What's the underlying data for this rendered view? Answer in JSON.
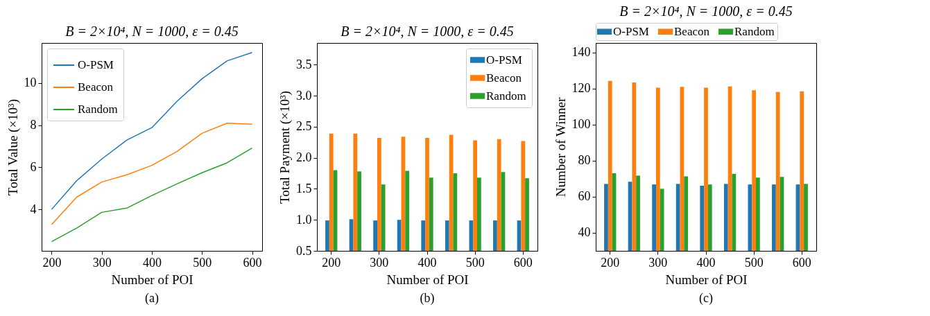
{
  "chart_data": [
    {
      "type": "line",
      "title": "B = 2×10⁴, N = 1000, ε = 0.45",
      "xlabel": "Number of POI",
      "ylabel": "Total Value (×10³)",
      "annotations": [
        "(a)"
      ],
      "legend": "top left",
      "x": [
        200,
        250,
        300,
        350,
        400,
        450,
        500,
        550,
        600
      ],
      "xlim": [
        180,
        620
      ],
      "xticks": [
        200,
        300,
        400,
        500,
        600
      ],
      "ylim": [
        2.03,
        11.9
      ],
      "yticks": [
        4,
        6,
        8,
        10
      ],
      "series": [
        {
          "name": "O-PSM",
          "color": "#1f77b4",
          "values": [
            4.0,
            5.36,
            6.39,
            7.29,
            7.88,
            9.13,
            10.2,
            11.05,
            11.45
          ]
        },
        {
          "name": "Beacon",
          "color": "#ff7f0e",
          "values": [
            3.28,
            4.58,
            5.3,
            5.64,
            6.09,
            6.75,
            7.61,
            8.09,
            8.04
          ]
        },
        {
          "name": "Random",
          "color": "#2ca02c",
          "values": [
            2.47,
            3.11,
            3.86,
            4.06,
            4.66,
            5.21,
            5.74,
            6.21,
            6.91
          ]
        }
      ]
    },
    {
      "type": "bar",
      "title": "B = 2×10⁴, N = 1000, ε = 0.45",
      "xlabel": "Number of POI",
      "ylabel": "Total Payment (×10³)",
      "annotations": [
        "(b)"
      ],
      "legend": "top right",
      "categories": [
        "200",
        null,
        "300",
        null,
        "400",
        null,
        "500",
        null,
        "600"
      ],
      "ylim": [
        0.5,
        3.85
      ],
      "yticks": [
        0.5,
        {
          "value": 1,
          "label": "1.0"
        },
        1.5,
        {
          "value": 2,
          "label": "2.0"
        },
        2.5,
        {
          "value": 3,
          "label": "3.0"
        },
        3.5
      ],
      "series": [
        {
          "name": "O-PSM",
          "color": "#1f77b4",
          "values": [
            0.99,
            1.01,
            0.99,
            1.0,
            0.99,
            0.99,
            0.99,
            0.99,
            0.99
          ]
        },
        {
          "name": "Beacon",
          "color": "#ff7f0e",
          "values": [
            2.39,
            2.39,
            2.32,
            2.34,
            2.32,
            2.37,
            2.28,
            2.3,
            2.27
          ]
        },
        {
          "name": "Random",
          "color": "#2ca02c",
          "values": [
            1.8,
            1.78,
            1.57,
            1.79,
            1.68,
            1.75,
            1.68,
            1.77,
            1.67
          ]
        }
      ]
    },
    {
      "type": "bar",
      "title": "B = 2×10⁴, N = 1000, ε = 0.45",
      "xlabel": "Number of POI",
      "ylabel": "Number of Winner",
      "annotations": [
        "(c)"
      ],
      "legend": "top",
      "categories": [
        "200",
        null,
        "300",
        null,
        "400",
        null,
        "500",
        null,
        "600"
      ],
      "ylim": [
        30,
        145.2
      ],
      "yticks": [
        40,
        60,
        80,
        100,
        120,
        140
      ],
      "series": [
        {
          "name": "O-PSM",
          "color": "#1f77b4",
          "values": [
            67.1,
            68.3,
            66.8,
            67.1,
            66.1,
            67.1,
            66.8,
            66.8,
            66.8
          ]
        },
        {
          "name": "Beacon",
          "color": "#ff7f0e",
          "values": [
            124.2,
            123.3,
            120.4,
            120.9,
            120.4,
            121.1,
            119.0,
            118.0,
            118.4
          ]
        },
        {
          "name": "Random",
          "color": "#2ca02c",
          "values": [
            73.0,
            71.7,
            64.4,
            71.3,
            66.8,
            72.7,
            70.6,
            71.0,
            67.1
          ]
        }
      ]
    }
  ]
}
